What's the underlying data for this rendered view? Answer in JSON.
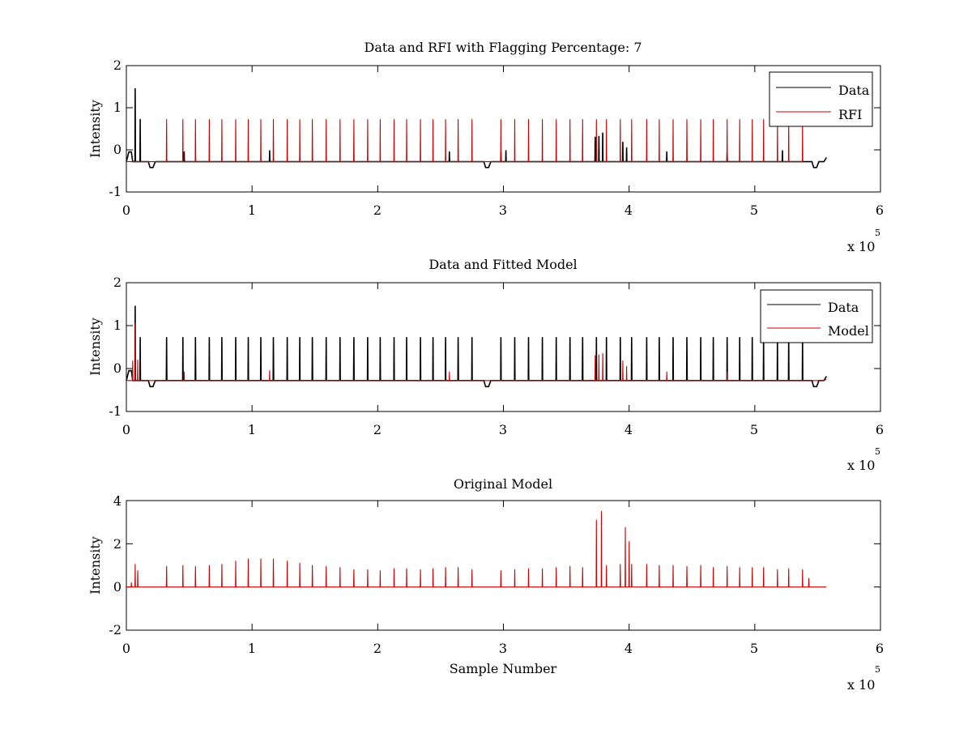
{
  "chart_data": [
    {
      "type": "line",
      "title": "Data and RFI with Flagging Percentage: 7",
      "xlabel": "",
      "ylabel": "Intensity",
      "xlim": [
        0,
        6
      ],
      "ylim": [
        -1,
        2
      ],
      "x_ticks": [
        "0",
        "1",
        "2",
        "3",
        "4",
        "5",
        "6"
      ],
      "y_ticks": [
        "-1",
        "0",
        "1",
        "2"
      ],
      "x_multiplier": "x 10",
      "x_exponent": "5",
      "legend_position": "top-right",
      "baseline": -0.28,
      "series": [
        {
          "name": "Data",
          "color": "#000000",
          "spikes": [
            [
              0.07,
              1.45
            ],
            [
              0.11,
              0.72
            ],
            [
              0.46,
              -0.05
            ],
            [
              1.14,
              -0.02
            ],
            [
              2.57,
              -0.05
            ],
            [
              2.98,
              -0.05
            ],
            [
              3.02,
              -0.02
            ],
            [
              3.73,
              0.3
            ],
            [
              3.76,
              0.32
            ],
            [
              3.79,
              0.4
            ],
            [
              3.95,
              0.18
            ],
            [
              3.98,
              0.05
            ],
            [
              4.3,
              -0.05
            ],
            [
              4.78,
              -0.05
            ],
            [
              5.22,
              -0.02
            ]
          ],
          "dips": [
            [
              0.2,
              -0.42
            ],
            [
              2.87,
              -0.42
            ],
            [
              5.48,
              -0.42
            ]
          ],
          "start_bump": [
            [
              0.0,
              -0.28
            ],
            [
              0.02,
              -0.05
            ],
            [
              0.04,
              -0.05
            ],
            [
              0.05,
              -0.28
            ]
          ],
          "end_x": 5.57,
          "end_value": -0.18
        },
        {
          "name": "RFI",
          "color": "#cc0000",
          "spikes": [
            [
              0.32,
              0.72
            ],
            [
              0.45,
              0.72
            ],
            [
              0.55,
              0.72
            ],
            [
              0.66,
              0.72
            ],
            [
              0.76,
              0.72
            ],
            [
              0.87,
              0.72
            ],
            [
              0.97,
              0.72
            ],
            [
              1.07,
              0.72
            ],
            [
              1.17,
              0.72
            ],
            [
              1.28,
              0.72
            ],
            [
              1.38,
              0.72
            ],
            [
              1.48,
              0.72
            ],
            [
              1.59,
              0.72
            ],
            [
              1.7,
              0.72
            ],
            [
              1.81,
              0.72
            ],
            [
              1.92,
              0.72
            ],
            [
              2.02,
              0.72
            ],
            [
              2.13,
              0.72
            ],
            [
              2.23,
              0.72
            ],
            [
              2.34,
              0.72
            ],
            [
              2.44,
              0.72
            ],
            [
              2.54,
              0.72
            ],
            [
              2.64,
              0.72
            ],
            [
              2.75,
              0.72
            ],
            [
              2.98,
              0.72
            ],
            [
              3.09,
              0.72
            ],
            [
              3.2,
              0.72
            ],
            [
              3.31,
              0.72
            ],
            [
              3.42,
              0.72
            ],
            [
              3.53,
              0.72
            ],
            [
              3.63,
              0.72
            ],
            [
              3.74,
              0.72
            ],
            [
              3.82,
              0.72
            ],
            [
              3.93,
              0.72
            ],
            [
              4.02,
              0.72
            ],
            [
              4.14,
              0.72
            ],
            [
              4.24,
              0.72
            ],
            [
              4.35,
              0.72
            ],
            [
              4.46,
              0.72
            ],
            [
              4.57,
              0.72
            ],
            [
              4.67,
              0.72
            ],
            [
              4.78,
              0.72
            ],
            [
              4.88,
              0.72
            ],
            [
              4.98,
              0.72
            ],
            [
              5.07,
              0.72
            ],
            [
              5.18,
              0.72
            ],
            [
              5.27,
              0.72
            ],
            [
              5.38,
              0.72
            ]
          ]
        }
      ]
    },
    {
      "type": "line",
      "title": "Data and Fitted Model",
      "xlabel": "",
      "ylabel": "Intensity",
      "xlim": [
        0,
        6
      ],
      "ylim": [
        -1,
        2
      ],
      "x_ticks": [
        "0",
        "1",
        "2",
        "3",
        "4",
        "5",
        "6"
      ],
      "y_ticks": [
        "-1",
        "0",
        "1",
        "2"
      ],
      "x_multiplier": "x 10",
      "x_exponent": "5",
      "legend_position": "top-right",
      "baseline": -0.28,
      "series": [
        {
          "name": "Data",
          "color": "#000000",
          "spikes": [
            [
              0.07,
              1.45
            ],
            [
              0.11,
              0.72
            ],
            [
              0.32,
              0.72
            ],
            [
              0.45,
              0.72
            ],
            [
              0.55,
              0.72
            ],
            [
              0.66,
              0.72
            ],
            [
              0.76,
              0.72
            ],
            [
              0.87,
              0.72
            ],
            [
              0.97,
              0.72
            ],
            [
              1.07,
              0.72
            ],
            [
              1.17,
              0.72
            ],
            [
              1.28,
              0.72
            ],
            [
              1.38,
              0.72
            ],
            [
              1.48,
              0.72
            ],
            [
              1.59,
              0.72
            ],
            [
              1.7,
              0.72
            ],
            [
              1.81,
              0.72
            ],
            [
              1.92,
              0.72
            ],
            [
              2.02,
              0.72
            ],
            [
              2.13,
              0.72
            ],
            [
              2.23,
              0.72
            ],
            [
              2.34,
              0.72
            ],
            [
              2.44,
              0.72
            ],
            [
              2.54,
              0.72
            ],
            [
              2.64,
              0.72
            ],
            [
              2.75,
              0.72
            ],
            [
              2.98,
              0.72
            ],
            [
              3.09,
              0.72
            ],
            [
              3.2,
              0.72
            ],
            [
              3.31,
              0.72
            ],
            [
              3.42,
              0.72
            ],
            [
              3.53,
              0.72
            ],
            [
              3.63,
              0.72
            ],
            [
              3.74,
              0.72
            ],
            [
              3.82,
              0.72
            ],
            [
              3.93,
              0.72
            ],
            [
              4.02,
              0.72
            ],
            [
              4.14,
              0.72
            ],
            [
              4.24,
              0.72
            ],
            [
              4.35,
              0.72
            ],
            [
              4.46,
              0.72
            ],
            [
              4.57,
              0.72
            ],
            [
              4.67,
              0.72
            ],
            [
              4.78,
              0.72
            ],
            [
              4.88,
              0.72
            ],
            [
              4.98,
              0.72
            ],
            [
              5.07,
              0.72
            ],
            [
              5.18,
              0.72
            ],
            [
              5.27,
              0.72
            ],
            [
              5.38,
              0.72
            ]
          ],
          "dips": [
            [
              0.2,
              -0.42
            ],
            [
              2.87,
              -0.42
            ],
            [
              5.48,
              -0.42
            ]
          ],
          "start_bump": [
            [
              0.0,
              -0.28
            ],
            [
              0.02,
              -0.05
            ],
            [
              0.04,
              -0.05
            ],
            [
              0.05,
              -0.28
            ]
          ],
          "end_x": 5.57,
          "end_value": -0.18
        },
        {
          "name": "Model",
          "color": "#cc0000",
          "spikes": [
            [
              0.05,
              0.18
            ],
            [
              0.07,
              1.05
            ],
            [
              0.09,
              0.2
            ],
            [
              0.46,
              -0.08
            ],
            [
              1.14,
              -0.05
            ],
            [
              2.57,
              -0.08
            ],
            [
              3.73,
              0.3
            ],
            [
              3.76,
              0.32
            ],
            [
              3.79,
              0.35
            ],
            [
              3.95,
              0.18
            ],
            [
              3.98,
              0.05
            ],
            [
              4.3,
              -0.08
            ],
            [
              4.78,
              -0.08
            ]
          ],
          "dips": [],
          "start_bump": [],
          "end_x": 5.57,
          "end_value": -0.25
        }
      ]
    },
    {
      "type": "line",
      "title": "Original Model",
      "xlabel": "Sample Number",
      "ylabel": "Intensity",
      "xlim": [
        0,
        6
      ],
      "ylim": [
        -2,
        4
      ],
      "x_ticks": [
        "0",
        "1",
        "2",
        "3",
        "4",
        "5",
        "6"
      ],
      "y_ticks": [
        "-2",
        "0",
        "2",
        "4"
      ],
      "x_multiplier": "x 10",
      "x_exponent": "5",
      "legend_position": "none",
      "baseline": 0,
      "series": [
        {
          "color": "#cc0000",
          "spikes": [
            [
              0.04,
              0.2
            ],
            [
              0.07,
              1.05
            ],
            [
              0.09,
              0.75
            ],
            [
              0.32,
              0.95
            ],
            [
              0.45,
              1.0
            ],
            [
              0.55,
              0.95
            ],
            [
              0.66,
              1.0
            ],
            [
              0.76,
              1.05
            ],
            [
              0.87,
              1.2
            ],
            [
              0.97,
              1.3
            ],
            [
              1.07,
              1.3
            ],
            [
              1.17,
              1.3
            ],
            [
              1.28,
              1.2
            ],
            [
              1.38,
              1.1
            ],
            [
              1.48,
              1.0
            ],
            [
              1.59,
              0.95
            ],
            [
              1.7,
              0.9
            ],
            [
              1.81,
              0.8
            ],
            [
              1.92,
              0.8
            ],
            [
              2.02,
              0.75
            ],
            [
              2.13,
              0.85
            ],
            [
              2.23,
              0.85
            ],
            [
              2.34,
              0.8
            ],
            [
              2.44,
              0.85
            ],
            [
              2.54,
              0.9
            ],
            [
              2.64,
              0.9
            ],
            [
              2.75,
              0.8
            ],
            [
              2.98,
              0.75
            ],
            [
              3.09,
              0.8
            ],
            [
              3.2,
              0.85
            ],
            [
              3.31,
              0.85
            ],
            [
              3.42,
              0.9
            ],
            [
              3.53,
              0.95
            ],
            [
              3.63,
              0.9
            ],
            [
              3.74,
              3.1
            ],
            [
              3.78,
              3.5
            ],
            [
              3.82,
              1.0
            ],
            [
              3.93,
              1.05
            ],
            [
              3.97,
              2.75
            ],
            [
              4.0,
              2.1
            ],
            [
              4.02,
              1.05
            ],
            [
              4.14,
              1.05
            ],
            [
              4.24,
              1.0
            ],
            [
              4.35,
              1.0
            ],
            [
              4.46,
              0.95
            ],
            [
              4.57,
              1.0
            ],
            [
              4.67,
              0.9
            ],
            [
              4.78,
              0.95
            ],
            [
              4.88,
              0.9
            ],
            [
              4.98,
              0.9
            ],
            [
              5.07,
              0.9
            ],
            [
              5.18,
              0.8
            ],
            [
              5.27,
              0.85
            ],
            [
              5.38,
              0.8
            ],
            [
              5.43,
              0.4
            ]
          ],
          "dips": [],
          "start_bump": [],
          "end_x": 5.57,
          "end_value": 0
        }
      ]
    }
  ]
}
